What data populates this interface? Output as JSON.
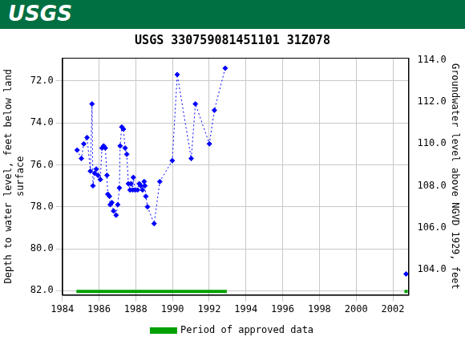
{
  "banner": {
    "text": "USGS",
    "color": "#006f41"
  },
  "chart_data": {
    "type": "scatter",
    "title": "USGS 330759081451101 31Z078",
    "ylabel": [
      "Depth to water level, feet below land",
      "surface"
    ],
    "y2label": "Groundwater level above NGVD 1929, feet",
    "xlim": [
      1984,
      2002.85
    ],
    "xticks": [
      1984,
      1986,
      1988,
      1990,
      1992,
      1994,
      1996,
      1998,
      2000,
      2002
    ],
    "ylim": [
      82.2,
      70.9
    ],
    "yticks": [
      {
        "value": 72,
        "label": "72.0"
      },
      {
        "value": 74,
        "label": "74.0"
      },
      {
        "value": 76,
        "label": "76.0"
      },
      {
        "value": 78,
        "label": "78.0"
      },
      {
        "value": 80,
        "label": "80.0"
      },
      {
        "value": 82,
        "label": "82.0"
      }
    ],
    "y2lim": [
      102.8,
      114.1
    ],
    "y2ticks": [
      {
        "value": 104,
        "label": "104.0"
      },
      {
        "value": 106,
        "label": "106.0"
      },
      {
        "value": 108,
        "label": "108.0"
      },
      {
        "value": 110,
        "label": "110.0"
      },
      {
        "value": 112,
        "label": "112.0"
      },
      {
        "value": 114,
        "label": "114.0"
      }
    ],
    "x": [
      1984.81,
      1985.04,
      1985.17,
      1985.35,
      1985.53,
      1985.62,
      1985.67,
      1985.76,
      1985.85,
      1985.94,
      1986.07,
      1986.16,
      1986.25,
      1986.34,
      1986.43,
      1986.48,
      1986.57,
      1986.61,
      1986.7,
      1986.79,
      1986.93,
      1987.02,
      1987.11,
      1987.15,
      1987.24,
      1987.33,
      1987.42,
      1987.51,
      1987.6,
      1987.69,
      1987.74,
      1987.83,
      1987.87,
      1987.96,
      1988.1,
      1988.19,
      1988.28,
      1988.37,
      1988.46,
      1988.5,
      1988.55,
      1988.64,
      1989.0,
      1989.31,
      1989.99,
      1990.26,
      1991.02,
      1991.25,
      1992.01,
      1992.28,
      1992.87,
      2002.72
    ],
    "series": [
      {
        "color": "#0000ff",
        "marker": "diamond",
        "line_style": "dotted",
        "values": [
          75.3,
          75.7,
          75.0,
          74.7,
          76.3,
          73.1,
          77.0,
          76.4,
          76.2,
          76.5,
          76.7,
          75.2,
          75.1,
          75.2,
          76.5,
          77.4,
          77.5,
          77.9,
          77.8,
          78.2,
          78.4,
          77.9,
          77.1,
          75.1,
          74.2,
          74.3,
          75.2,
          75.5,
          76.9,
          77.2,
          76.9,
          77.2,
          76.6,
          77.2,
          77.2,
          76.9,
          77.0,
          77.2,
          76.8,
          77.0,
          77.5,
          78.0,
          78.8,
          76.8,
          75.8,
          71.7,
          75.7,
          73.1,
          75.0,
          73.4,
          71.4,
          81.2
        ]
      }
    ],
    "approved_periods": {
      "name": "Period of approved data",
      "color": "#00a000",
      "ranges": [
        [
          1984.77,
          1992.96
        ],
        [
          2002.63,
          2002.81
        ]
      ]
    },
    "grid": true,
    "legend": "bottom"
  }
}
